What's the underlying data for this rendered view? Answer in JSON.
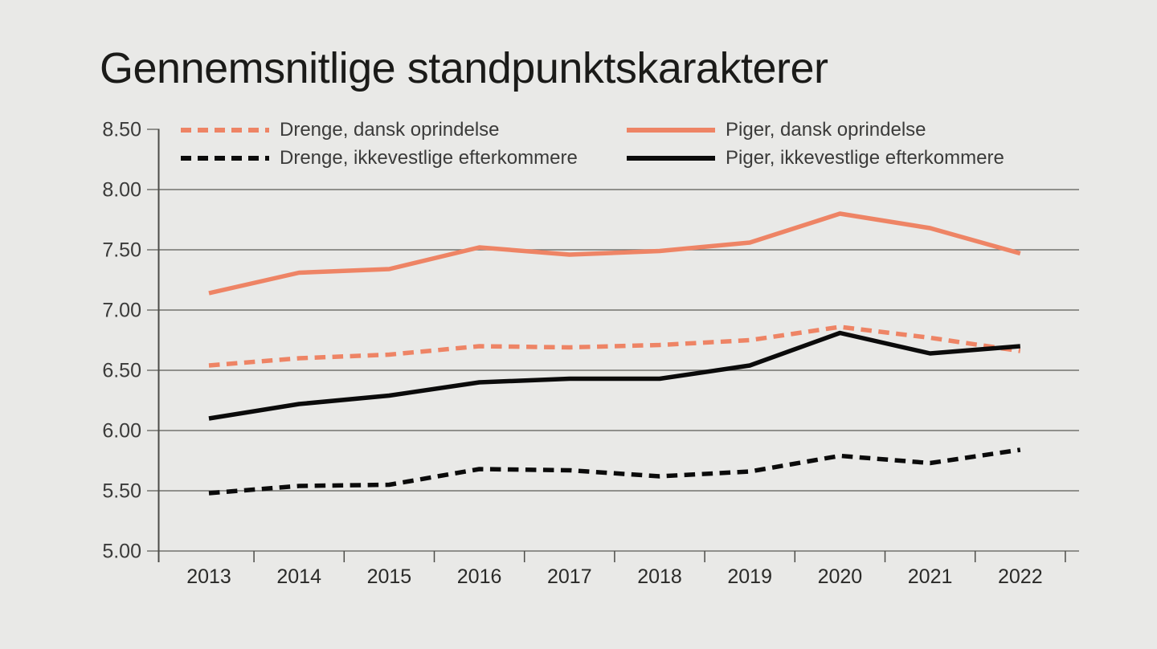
{
  "title": "Gennemsnitlige standpunktskarakterer",
  "colors": {
    "background": "#e9e9e7",
    "salmon": "#ee8465",
    "black": "#0b0b0b",
    "gridline": "#72726e",
    "axis": "#4c4c48",
    "title_text": "#1b1b19",
    "axis_label_text": "#3b3b3a",
    "year_label_text": "#2a2a28"
  },
  "legend": {
    "items": [
      {
        "label": "Drenge, dansk oprindelse",
        "series_index": 0
      },
      {
        "label": "Piger, dansk oprindelse",
        "series_index": 1
      },
      {
        "label": "Drenge, ikkevestlige efterkommere",
        "series_index": 2
      },
      {
        "label": "Piger, ikkevestlige efterkommere",
        "series_index": 3
      }
    ]
  },
  "chart_data": {
    "type": "line",
    "title": "Gennemsnitlige standpunktskarakterer",
    "categories": [
      "2013",
      "2014",
      "2015",
      "2016",
      "2017",
      "2018",
      "2019",
      "2020",
      "2021",
      "2022"
    ],
    "series": [
      {
        "name": "Drenge, dansk oprindelse",
        "color": "#ee8465",
        "style": "dashed",
        "values": [
          6.54,
          6.6,
          6.63,
          6.7,
          6.69,
          6.71,
          6.75,
          6.86,
          6.77,
          6.66
        ]
      },
      {
        "name": "Piger, dansk oprindelse",
        "color": "#ee8465",
        "style": "solid",
        "values": [
          7.14,
          7.31,
          7.34,
          7.52,
          7.46,
          7.49,
          7.56,
          7.8,
          7.68,
          7.47
        ]
      },
      {
        "name": "Drenge, ikkevestlige efterkommere",
        "color": "#0b0b0b",
        "style": "dashed",
        "values": [
          5.48,
          5.54,
          5.55,
          5.68,
          5.67,
          5.62,
          5.66,
          5.79,
          5.73,
          5.84
        ]
      },
      {
        "name": "Piger, ikkevestlige efterkommere",
        "color": "#0b0b0b",
        "style": "solid",
        "values": [
          6.1,
          6.22,
          6.29,
          6.4,
          6.43,
          6.43,
          6.54,
          6.81,
          6.64,
          6.7
        ]
      }
    ],
    "ylim": [
      5.0,
      8.5
    ],
    "yticks": [
      "8.50",
      "8.00",
      "7.50",
      "7.00",
      "6.50",
      "6.00",
      "5.50",
      "5.00"
    ],
    "grid": true,
    "legend_position": "top"
  }
}
